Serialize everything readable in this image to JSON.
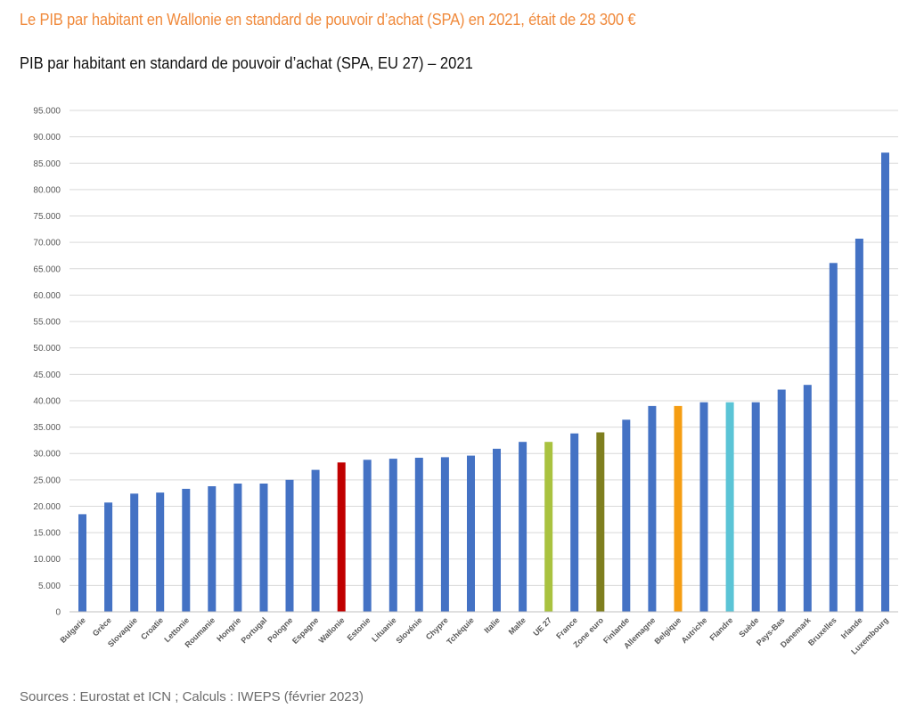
{
  "headline": "Le PIB par habitant en Wallonie en standard de pouvoir d’achat (SPA) en 2021, était de 28 300 €",
  "source": "Sources : Eurostat et ICN ; Calculs : IWEPS (février 2023)",
  "colors": {
    "headline": "#f08a3c",
    "default_bar": "#4472c4",
    "gridline": "#d9d9d9"
  },
  "chart_data": {
    "type": "bar",
    "title": "PIB par habitant en standard de pouvoir d’achat (SPA, EU 27) – 2021",
    "xlabel": "",
    "ylabel": "",
    "ylim": [
      0,
      95000
    ],
    "ytick_step": 5000,
    "yticks": [
      "0",
      "5.000",
      "10.000",
      "15.000",
      "20.000",
      "25.000",
      "30.000",
      "35.000",
      "40.000",
      "45.000",
      "50.000",
      "55.000",
      "60.000",
      "65.000",
      "70.000",
      "75.000",
      "80.000",
      "85.000",
      "90.000",
      "95.000"
    ],
    "grid": true,
    "legend": "none",
    "categories": [
      "Bulgarie",
      "Grèce",
      "Slovaquie",
      "Croatie",
      "Lettonie",
      "Roumanie",
      "Hongrie",
      "Portugal",
      "Pologne",
      "Espagne",
      "Wallonie",
      "Estonie",
      "Lituanie",
      "Slovénie",
      "Chypre",
      "Tchéquie",
      "Italie",
      "Malte",
      "UE 27",
      "France",
      "Zone euro",
      "Finlande",
      "Allemagne",
      "Belgique",
      "Autriche",
      "Flandre",
      "Suède",
      "Pays-Bas",
      "Danemark",
      "Bruxelles",
      "Irlande",
      "Luxembourg"
    ],
    "values": [
      18500,
      20700,
      22400,
      22600,
      23300,
      23800,
      24300,
      24300,
      25000,
      26900,
      28300,
      28800,
      29000,
      29200,
      29300,
      29600,
      30900,
      32200,
      32200,
      33800,
      34000,
      36400,
      39000,
      39000,
      39700,
      39700,
      39700,
      42100,
      43000,
      66100,
      70700,
      87000
    ],
    "bar_colors": [
      "#4472c4",
      "#4472c4",
      "#4472c4",
      "#4472c4",
      "#4472c4",
      "#4472c4",
      "#4472c4",
      "#4472c4",
      "#4472c4",
      "#4472c4",
      "#c00000",
      "#4472c4",
      "#4472c4",
      "#4472c4",
      "#4472c4",
      "#4472c4",
      "#4472c4",
      "#4472c4",
      "#a9c23f",
      "#4472c4",
      "#7f7f1f",
      "#4472c4",
      "#4472c4",
      "#f59d12",
      "#4472c4",
      "#5bc4d6",
      "#4472c4",
      "#4472c4",
      "#4472c4",
      "#4472c4",
      "#4472c4",
      "#4472c4"
    ]
  }
}
